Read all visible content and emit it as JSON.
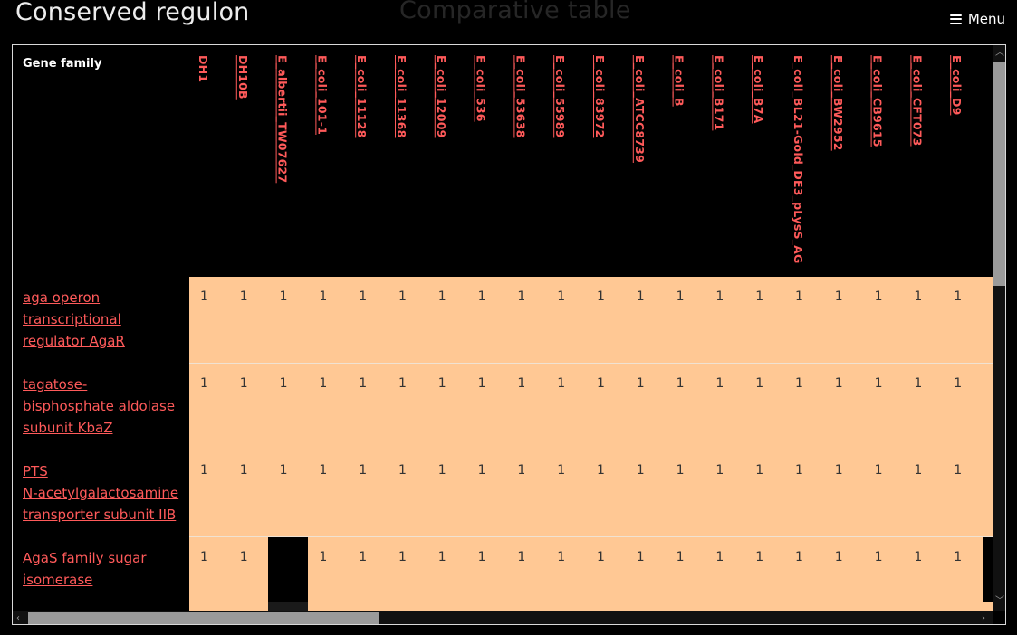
{
  "header": {
    "left_title": "Conserved regulon",
    "center_title": "Comparative table",
    "menu_label": "Menu"
  },
  "table": {
    "corner_label": "Gene family",
    "columns": [
      "DH1",
      "DH10B",
      "E_albertii_TW07627",
      "E_coli_101-1",
      "E_coli_11128",
      "E_coli_11368",
      "E_coli_12009",
      "E_coli_536",
      "E_coli_53638",
      "E_coli_55989",
      "E_coli_83972",
      "E_coli_ATCC8739",
      "E_coli_B",
      "E_coli_B171",
      "E_coli_B7A",
      "E_coli_BL21-Gold_DE3_pLysS_AG",
      "E_coli_BW2952",
      "E_coli_CB9615",
      "E_coli_CFT073",
      "E_coli_D9"
    ],
    "rows": [
      {
        "label_lines": [
          "aga operon",
          "transcriptional",
          "regulator AgaR"
        ],
        "values": [
          "1",
          "1",
          "1",
          "1",
          "1",
          "1",
          "1",
          "1",
          "1",
          "1",
          "1",
          "1",
          "1",
          "1",
          "1",
          "1",
          "1",
          "1",
          "1",
          "1"
        ]
      },
      {
        "label_lines": [
          "tagatose-",
          "bisphosphate aldolase",
          "subunit KbaZ"
        ],
        "values": [
          "1",
          "1",
          "1",
          "1",
          "1",
          "1",
          "1",
          "1",
          "1",
          "1",
          "1",
          "1",
          "1",
          "1",
          "1",
          "1",
          "1",
          "1",
          "1",
          "1"
        ]
      },
      {
        "label_lines": [
          "PTS",
          "N-acetylgalactosamine",
          "transporter subunit IIB"
        ],
        "values": [
          "1",
          "1",
          "1",
          "1",
          "1",
          "1",
          "1",
          "1",
          "1",
          "1",
          "1",
          "1",
          "1",
          "1",
          "1",
          "1",
          "1",
          "1",
          "1",
          "1"
        ]
      },
      {
        "label_lines": [
          "AgaS family sugar",
          "isomerase"
        ],
        "values": [
          "1",
          "1",
          "",
          "1",
          "1",
          "1",
          "1",
          "1",
          "1",
          "1",
          "1",
          "1",
          "1",
          "1",
          "1",
          "1",
          "1",
          "1",
          "1",
          "1"
        ]
      }
    ]
  },
  "colors": {
    "cell_background": "#ffc894",
    "link": "#ff5a5a",
    "background": "#000000"
  }
}
